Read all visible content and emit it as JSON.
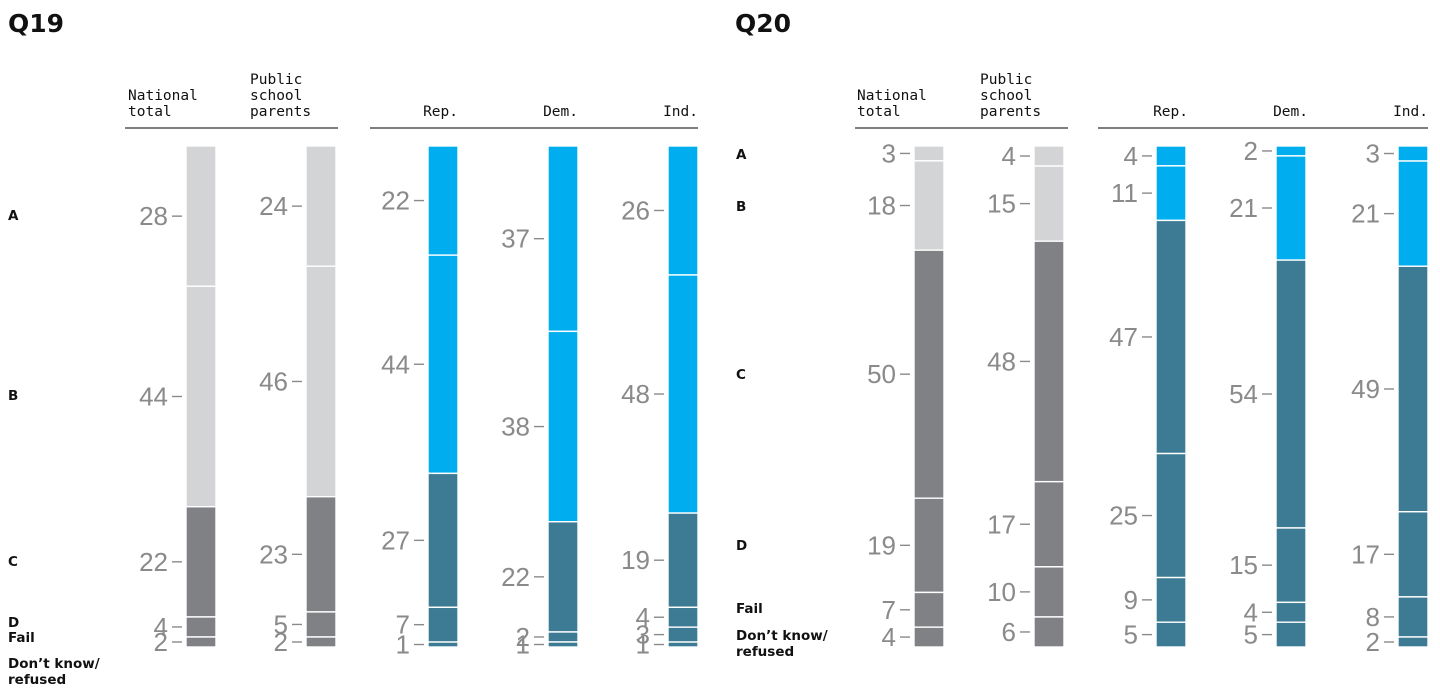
{
  "chart_data": [
    {
      "type": "stacked-bar",
      "title": "Q19",
      "categories": [
        "National total",
        "Public school parents",
        "Rep.",
        "Dem.",
        "Ind."
      ],
      "group_headers": [
        [
          "National",
          "total"
        ],
        [
          "Public",
          "school",
          "parents"
        ],
        [
          "Rep."
        ],
        [
          "Dem."
        ],
        [
          "Ind."
        ]
      ],
      "row_labels": [
        "A",
        "B",
        "C",
        "D",
        "Fail",
        "Don’t know/ refused"
      ],
      "series": [
        {
          "name": "A",
          "values": [
            28,
            24,
            22,
            37,
            26
          ]
        },
        {
          "name": "B",
          "values": [
            44,
            46,
            44,
            38,
            48
          ]
        },
        {
          "name": "C",
          "values": [
            22,
            23,
            27,
            22,
            19
          ]
        },
        {
          "name": "D",
          "values": [
            4,
            5,
            7,
            2,
            4
          ]
        },
        {
          "name": "Fail",
          "values": [
            2,
            2,
            1,
            1,
            3
          ]
        },
        {
          "name": "Don’t know/ refused",
          "values": [
            0,
            0,
            0,
            0,
            1
          ]
        }
      ],
      "bar_colors": [
        [
          "#d3d4d6",
          "#d3d4d6",
          "#808184",
          "#808184",
          "#808184",
          "#808184"
        ],
        [
          "#d3d4d6",
          "#d3d4d6",
          "#808184",
          "#808184",
          "#808184",
          "#808184"
        ],
        [
          "#00aeef",
          "#00aeef",
          "#3d7a94",
          "#3d7a94",
          "#3d7a94",
          "#3d7a94"
        ],
        [
          "#00aeef",
          "#00aeef",
          "#3d7a94",
          "#3d7a94",
          "#3d7a94",
          "#3d7a94"
        ],
        [
          "#00aeef",
          "#00aeef",
          "#3d7a94",
          "#3d7a94",
          "#3d7a94",
          "#3d7a94"
        ]
      ]
    },
    {
      "type": "stacked-bar",
      "title": "Q20",
      "categories": [
        "National total",
        "Public school parents",
        "Rep.",
        "Dem.",
        "Ind."
      ],
      "group_headers": [
        [
          "National",
          "total"
        ],
        [
          "Public",
          "school",
          "parents"
        ],
        [
          "Rep."
        ],
        [
          "Dem."
        ],
        [
          "Ind."
        ]
      ],
      "row_labels": [
        "A",
        "B",
        "C",
        "D",
        "Fail",
        "Don’t know/ refused"
      ],
      "series": [
        {
          "name": "A",
          "values": [
            3,
            4,
            4,
            2,
            3
          ]
        },
        {
          "name": "B",
          "values": [
            18,
            15,
            11,
            21,
            21
          ]
        },
        {
          "name": "C",
          "values": [
            50,
            48,
            47,
            54,
            49
          ]
        },
        {
          "name": "D",
          "values": [
            19,
            17,
            25,
            15,
            17
          ]
        },
        {
          "name": "Fail",
          "values": [
            7,
            10,
            9,
            4,
            8
          ]
        },
        {
          "name": "Don’t know/ refused",
          "values": [
            4,
            6,
            5,
            5,
            2
          ]
        }
      ],
      "bar_colors": [
        [
          "#d3d4d6",
          "#d3d4d6",
          "#808184",
          "#808184",
          "#808184",
          "#808184"
        ],
        [
          "#d3d4d6",
          "#d3d4d6",
          "#808184",
          "#808184",
          "#808184",
          "#808184"
        ],
        [
          "#00aeef",
          "#00aeef",
          "#3d7a94",
          "#3d7a94",
          "#3d7a94",
          "#3d7a94"
        ],
        [
          "#00aeef",
          "#00aeef",
          "#3d7a94",
          "#3d7a94",
          "#3d7a94",
          "#3d7a94"
        ],
        [
          "#00aeef",
          "#00aeef",
          "#3d7a94",
          "#3d7a94",
          "#3d7a94",
          "#3d7a94"
        ]
      ]
    }
  ]
}
